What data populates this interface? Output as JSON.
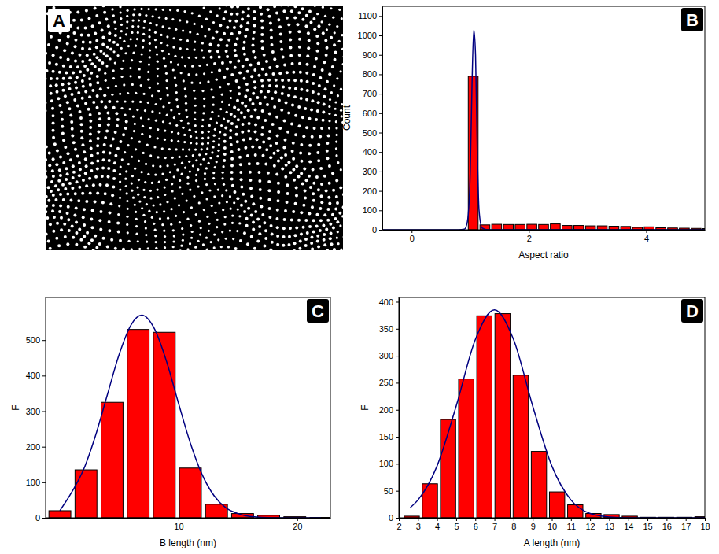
{
  "chart_data": [
    {
      "type": "image",
      "panel": "A"
    },
    {
      "type": "histogram",
      "panel": "B",
      "x_label": "Aspect ratio",
      "y_label": "Count",
      "bins": [
        0.95,
        1.15,
        1.35,
        1.55,
        1.75,
        1.95,
        2.15,
        2.35,
        2.55,
        2.75,
        2.95,
        3.15,
        3.35,
        3.55,
        3.75,
        3.95,
        4.15,
        4.35,
        4.55,
        4.75,
        4.95,
        5.15
      ],
      "values": [
        790,
        25,
        28,
        27,
        27,
        28,
        27,
        30,
        22,
        22,
        20,
        20,
        18,
        17,
        12,
        15,
        10,
        9,
        8,
        7,
        6
      ],
      "color": "#ff0000",
      "series": [
        {
          "type": "line",
          "color": "#000080",
          "x": [
            -0.5,
            0.8,
            0.9,
            0.95,
            1.0,
            1.03,
            1.06,
            1.09,
            1.12,
            1.15,
            1.2,
            1.3,
            5
          ],
          "values": [
            0,
            0,
            3,
            40,
            300,
            750,
            1030,
            900,
            400,
            100,
            10,
            0,
            0
          ]
        }
      ],
      "xlim": [
        -0.5,
        5
      ],
      "xticks": [
        0,
        2,
        4
      ],
      "ylim": [
        0,
        1150
      ],
      "yticks": [
        0,
        100,
        200,
        300,
        400,
        500,
        600,
        700,
        800,
        900,
        1000,
        1100
      ]
    },
    {
      "type": "histogram",
      "panel": "C",
      "x_label": "B length (nm)",
      "y_label": "F",
      "bins": [
        -1.1,
        1.1,
        3.3,
        5.5,
        7.7,
        9.9,
        12.1,
        14.3,
        16.5,
        18.7,
        20.9,
        23.1
      ],
      "values": [
        20,
        135,
        325,
        530,
        522,
        140,
        38,
        12,
        7,
        3,
        1
      ],
      "color": "#ff0000",
      "series": [
        {
          "type": "line",
          "color": "#000080",
          "x": [
            0,
            1,
            2,
            3,
            4,
            5,
            6,
            6.9,
            8,
            9,
            10,
            11,
            12,
            13,
            14,
            15,
            16,
            18,
            20,
            22
          ],
          "values": [
            20,
            72,
            136,
            231,
            346,
            460,
            543,
            570,
            530,
            439,
            322,
            210,
            121,
            62,
            28,
            12,
            4,
            0,
            0,
            0
          ]
        }
      ],
      "xlim": [
        -1.2,
        22.8
      ],
      "xticks": [
        10,
        20
      ],
      "ylim": [
        0,
        620
      ],
      "yticks": [
        0,
        100,
        200,
        300,
        400,
        500
      ]
    },
    {
      "type": "histogram",
      "panel": "D",
      "x_label": "A length (nm)",
      "y_label": "F",
      "bins": [
        2.2,
        3.15,
        4.1,
        5.05,
        6.0,
        6.95,
        7.9,
        8.85,
        9.8,
        10.75,
        11.7,
        12.65,
        13.6,
        14.55,
        15.5,
        16.45,
        17.4,
        18.35
      ],
      "values": [
        3,
        63,
        182,
        257,
        374,
        378,
        264,
        123,
        48,
        24,
        8,
        6,
        3,
        1,
        1,
        1,
        2
      ],
      "color": "#ff0000",
      "series": [
        {
          "type": "line",
          "color": "#000080",
          "x": [
            2.6,
            3,
            4,
            5,
            6,
            7,
            8,
            9,
            10,
            11,
            12,
            13,
            14,
            16,
            18
          ],
          "values": [
            19,
            33,
            96,
            207,
            330,
            385,
            330,
            207,
            96,
            33,
            8,
            1.5,
            0,
            0,
            0
          ]
        }
      ],
      "xlim": [
        2,
        18
      ],
      "xticks": [
        2,
        3,
        4,
        5,
        6,
        7,
        8,
        9,
        10,
        11,
        12,
        13,
        14,
        15,
        16,
        17,
        18
      ],
      "ylim": [
        0,
        408
      ],
      "yticks": [
        0,
        50,
        100,
        150,
        200,
        250,
        300,
        350,
        400
      ]
    }
  ]
}
